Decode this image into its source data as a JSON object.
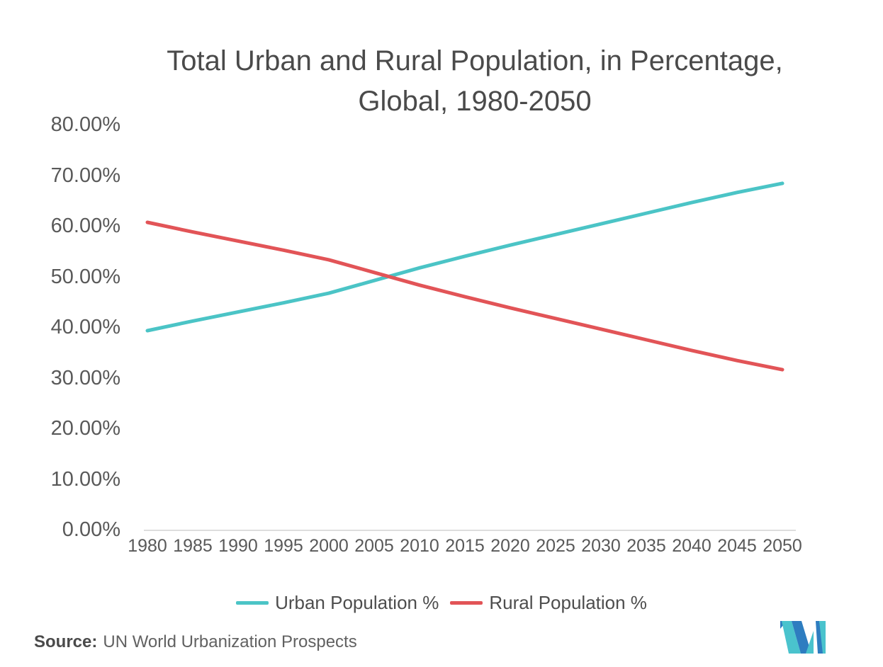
{
  "title": {
    "line1": "Total Urban and Rural Population, in Percentage,",
    "line2": "Global, 1980-2050"
  },
  "legend": [
    {
      "label": "Urban Population %",
      "color": "#4bc4c6"
    },
    {
      "label": "Rural Population %",
      "color": "#e25457"
    }
  ],
  "source": {
    "label": "Source:",
    "text": "UN World Urbanization Prospects"
  },
  "logo": {
    "name": "mordor-intelligence-logo",
    "teal": "#4ac3cd",
    "blue": "#2e7dc0"
  },
  "chart_data": {
    "type": "line",
    "title": "Total Urban and Rural Population, in Percentage, Global, 1980-2050",
    "xlabel": "",
    "ylabel": "",
    "x": [
      1980,
      1985,
      1990,
      1995,
      2000,
      2005,
      2010,
      2015,
      2020,
      2025,
      2030,
      2035,
      2040,
      2045,
      2050
    ],
    "series": [
      {
        "name": "Urban Population %",
        "color": "#4bc4c6",
        "values": [
          39.3,
          41.2,
          43.0,
          44.8,
          46.7,
          49.2,
          51.7,
          54.0,
          56.2,
          58.3,
          60.4,
          62.5,
          64.6,
          66.6,
          68.4
        ]
      },
      {
        "name": "Rural Population %",
        "color": "#e25457",
        "values": [
          60.7,
          58.8,
          57.0,
          55.2,
          53.3,
          50.8,
          48.3,
          46.0,
          43.8,
          41.7,
          39.6,
          37.5,
          35.4,
          33.4,
          31.6
        ]
      }
    ],
    "ylim": [
      0,
      80
    ],
    "y_ticks": [
      {
        "value": 80,
        "label": "80.00%"
      },
      {
        "value": 70,
        "label": "70.00%"
      },
      {
        "value": 60,
        "label": "60.00%"
      },
      {
        "value": 50,
        "label": "50.00%"
      },
      {
        "value": 40,
        "label": "40.00%"
      },
      {
        "value": 30,
        "label": "30.00%"
      },
      {
        "value": 20,
        "label": "20.00%"
      },
      {
        "value": 10,
        "label": "10.00%"
      },
      {
        "value": 0,
        "label": "0.00%"
      }
    ],
    "x_tick_labels": [
      "1980",
      "1985",
      "1990",
      "1995",
      "2000",
      "2005",
      "2010",
      "2015",
      "2020",
      "2025",
      "2030",
      "2035",
      "2040",
      "2045",
      "2050"
    ],
    "grid": false,
    "legend_position": "bottom",
    "axis_line_color": "#d2d2d2"
  }
}
